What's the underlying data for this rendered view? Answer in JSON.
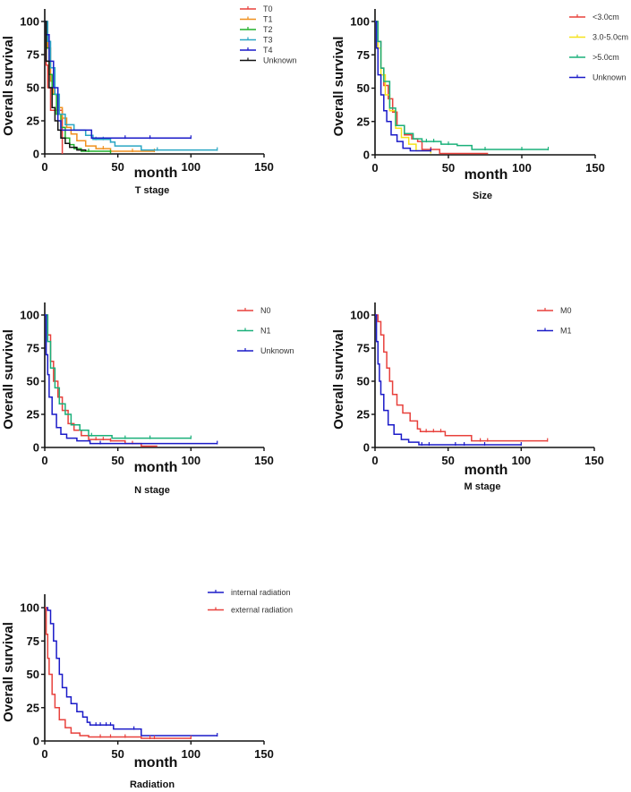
{
  "chart_data": [
    {
      "type": "line",
      "subtype": "kaplan-meier",
      "title": "T stage",
      "xlabel": "month",
      "ylabel": "Overall survival",
      "xlim": [
        0,
        150
      ],
      "ylim": [
        0,
        110
      ],
      "xticks": [
        0,
        50,
        100,
        150
      ],
      "yticks": [
        0,
        25,
        50,
        75,
        100
      ],
      "legend_position": "top-right",
      "series": [
        {
          "name": "T0",
          "color": "#e8413c",
          "points": [
            [
              0,
              100
            ],
            [
              1,
              67
            ],
            [
              2,
              50
            ],
            [
              4,
              33
            ],
            [
              12,
              33
            ],
            [
              12,
              0
            ]
          ],
          "censored": []
        },
        {
          "name": "T1",
          "color": "#f0901e",
          "points": [
            [
              0,
              100
            ],
            [
              2,
              80
            ],
            [
              4,
              55
            ],
            [
              6,
              45
            ],
            [
              9,
              35
            ],
            [
              12,
              27
            ],
            [
              15,
              20
            ],
            [
              18,
              15
            ],
            [
              22,
              10
            ],
            [
              28,
              6
            ],
            [
              35,
              4
            ],
            [
              45,
              2
            ],
            [
              75,
              2
            ]
          ],
          "censored": [
            40,
            60,
            75
          ]
        },
        {
          "name": "T2",
          "color": "#22b02c",
          "points": [
            [
              0,
              100
            ],
            [
              1,
              80
            ],
            [
              3,
              60
            ],
            [
              5,
              45
            ],
            [
              8,
              30
            ],
            [
              11,
              20
            ],
            [
              14,
              12
            ],
            [
              17,
              7
            ],
            [
              20,
              4
            ],
            [
              25,
              2
            ],
            [
              45,
              1
            ]
          ],
          "censored": [
            30,
            45
          ]
        },
        {
          "name": "T3",
          "color": "#2aa6c4",
          "points": [
            [
              0,
              100
            ],
            [
              2,
              85
            ],
            [
              4,
              65
            ],
            [
              7,
              45
            ],
            [
              10,
              30
            ],
            [
              14,
              22
            ],
            [
              20,
              18
            ],
            [
              28,
              14
            ],
            [
              33,
              11
            ],
            [
              45,
              9
            ],
            [
              48,
              6
            ],
            [
              66,
              6
            ],
            [
              66,
              3
            ],
            [
              118,
              3
            ]
          ],
          "censored": [
            35,
            40,
            45,
            77,
            118
          ]
        },
        {
          "name": "T4",
          "color": "#1a1ac8",
          "points": [
            [
              0,
              100
            ],
            [
              1,
              90
            ],
            [
              3,
              70
            ],
            [
              6,
              50
            ],
            [
              9,
              25
            ],
            [
              11,
              18
            ],
            [
              20,
              18
            ],
            [
              32,
              12
            ],
            [
              100,
              12
            ]
          ],
          "censored": [
            32,
            55,
            72,
            100
          ]
        },
        {
          "name": "Unknown",
          "color": "#111111",
          "points": [
            [
              0,
              100
            ],
            [
              1,
              70
            ],
            [
              3,
              50
            ],
            [
              5,
              35
            ],
            [
              7,
              25
            ],
            [
              9,
              18
            ],
            [
              11,
              12
            ],
            [
              14,
              8
            ],
            [
              17,
              5
            ],
            [
              22,
              3
            ],
            [
              28,
              2
            ]
          ],
          "censored": []
        }
      ]
    },
    {
      "type": "line",
      "subtype": "kaplan-meier",
      "title": "Size",
      "xlabel": "month",
      "ylabel": "Overall survival",
      "xlim": [
        0,
        150
      ],
      "ylim": [
        0,
        110
      ],
      "xticks": [
        0,
        50,
        100,
        150
      ],
      "yticks": [
        0,
        25,
        50,
        75,
        100
      ],
      "legend_position": "top-right",
      "series": [
        {
          "name": "<3.0cm",
          "color": "#e8413c",
          "points": [
            [
              0,
              100
            ],
            [
              2,
              85
            ],
            [
              4,
              65
            ],
            [
              6,
              52
            ],
            [
              9,
              42
            ],
            [
              12,
              32
            ],
            [
              15,
              22
            ],
            [
              20,
              15
            ],
            [
              25,
              12
            ],
            [
              29,
              10
            ],
            [
              32,
              4
            ],
            [
              44,
              4
            ],
            [
              44,
              1
            ],
            [
              77,
              1
            ]
          ],
          "censored": [
            38
          ]
        },
        {
          "name": "3.0-5.0cm",
          "color": "#f5e21a",
          "points": [
            [
              0,
              100
            ],
            [
              2,
              80
            ],
            [
              4,
              60
            ],
            [
              7,
              45
            ],
            [
              10,
              33
            ],
            [
              14,
              20
            ],
            [
              18,
              13
            ],
            [
              23,
              8
            ],
            [
              28,
              3
            ],
            [
              38,
              1
            ]
          ],
          "censored": []
        },
        {
          "name": ">5.0cm",
          "color": "#1ab07a",
          "points": [
            [
              0,
              100
            ],
            [
              2,
              85
            ],
            [
              4,
              65
            ],
            [
              6,
              55
            ],
            [
              10,
              35
            ],
            [
              14,
              22
            ],
            [
              20,
              16
            ],
            [
              26,
              12
            ],
            [
              32,
              10
            ],
            [
              45,
              8
            ],
            [
              56,
              7
            ],
            [
              66,
              4
            ],
            [
              118,
              4
            ]
          ],
          "censored": [
            35,
            40,
            50,
            75,
            100,
            118
          ]
        },
        {
          "name": "Unknown",
          "color": "#1a1ac8",
          "points": [
            [
              0,
              100
            ],
            [
              1,
              80
            ],
            [
              2,
              60
            ],
            [
              4,
              45
            ],
            [
              6,
              33
            ],
            [
              8,
              25
            ],
            [
              11,
              15
            ],
            [
              15,
              10
            ],
            [
              19,
              5
            ],
            [
              24,
              3
            ],
            [
              38,
              3
            ]
          ],
          "censored": [
            38
          ]
        }
      ]
    },
    {
      "type": "line",
      "subtype": "kaplan-meier",
      "title": "N stage",
      "xlabel": "month",
      "ylabel": "Overall survival",
      "xlim": [
        0,
        150
      ],
      "ylim": [
        0,
        110
      ],
      "xticks": [
        0,
        50,
        100,
        150
      ],
      "yticks": [
        0,
        25,
        50,
        75,
        100
      ],
      "legend_position": "top-right",
      "series": [
        {
          "name": "N0",
          "color": "#e8413c",
          "points": [
            [
              0,
              100
            ],
            [
              2,
              85
            ],
            [
              4,
              65
            ],
            [
              6,
              50
            ],
            [
              9,
              38
            ],
            [
              12,
              28
            ],
            [
              16,
              18
            ],
            [
              20,
              13
            ],
            [
              25,
              9
            ],
            [
              30,
              6
            ],
            [
              45,
              5
            ],
            [
              55,
              3
            ],
            [
              66,
              1
            ],
            [
              77,
              1
            ]
          ],
          "censored": [
            35,
            40,
            45,
            60
          ]
        },
        {
          "name": "N1",
          "color": "#1ab07a",
          "points": [
            [
              0,
              100
            ],
            [
              2,
              80
            ],
            [
              4,
              60
            ],
            [
              7,
              45
            ],
            [
              10,
              33
            ],
            [
              14,
              25
            ],
            [
              18,
              17
            ],
            [
              24,
              13
            ],
            [
              30,
              9
            ],
            [
              44,
              9
            ],
            [
              46,
              7
            ],
            [
              100,
              7
            ]
          ],
          "censored": [
            32,
            55,
            72,
            100
          ]
        },
        {
          "name": "Unknown",
          "color": "#1a1ac8",
          "points": [
            [
              0,
              100
            ],
            [
              1,
              70
            ],
            [
              2,
              55
            ],
            [
              3,
              38
            ],
            [
              5,
              25
            ],
            [
              8,
              15
            ],
            [
              11,
              10
            ],
            [
              15,
              7
            ],
            [
              22,
              5
            ],
            [
              31,
              3
            ],
            [
              118,
              3
            ]
          ],
          "censored": [
            38,
            118
          ]
        }
      ]
    },
    {
      "type": "line",
      "subtype": "kaplan-meier",
      "title": "M stage",
      "xlabel": "month",
      "ylabel": "Overall survival",
      "xlim": [
        0,
        150
      ],
      "ylim": [
        0,
        110
      ],
      "xticks": [
        0,
        50,
        100,
        150
      ],
      "yticks": [
        0,
        25,
        50,
        75,
        100
      ],
      "legend_position": "top-right",
      "series": [
        {
          "name": "M0",
          "color": "#e8413c",
          "points": [
            [
              0,
              100
            ],
            [
              2,
              95
            ],
            [
              4,
              85
            ],
            [
              6,
              72
            ],
            [
              8,
              60
            ],
            [
              10,
              50
            ],
            [
              12,
              40
            ],
            [
              15,
              32
            ],
            [
              19,
              26
            ],
            [
              24,
              20
            ],
            [
              29,
              14
            ],
            [
              31,
              12
            ],
            [
              46,
              12
            ],
            [
              48,
              9
            ],
            [
              56,
              9
            ],
            [
              66,
              5
            ],
            [
              118,
              5
            ]
          ],
          "censored": [
            35,
            40,
            45,
            72,
            77,
            118
          ]
        },
        {
          "name": "M1",
          "color": "#1a1ac8",
          "points": [
            [
              0,
              100
            ],
            [
              1,
              80
            ],
            [
              2,
              63
            ],
            [
              3,
              50
            ],
            [
              4,
              40
            ],
            [
              6,
              28
            ],
            [
              9,
              17
            ],
            [
              13,
              10
            ],
            [
              18,
              6
            ],
            [
              23,
              4
            ],
            [
              30,
              2
            ],
            [
              100,
              2
            ]
          ],
          "censored": [
            32,
            37,
            55,
            61,
            75,
            100
          ]
        }
      ]
    },
    {
      "type": "line",
      "subtype": "kaplan-meier",
      "title": "Radiation",
      "xlabel": "month",
      "ylabel": "Overall survival",
      "xlim": [
        0,
        150
      ],
      "ylim": [
        0,
        110
      ],
      "xticks": [
        0,
        50,
        100,
        150
      ],
      "yticks": [
        0,
        25,
        50,
        75,
        100
      ],
      "legend_position": "top-right",
      "series": [
        {
          "name": "internal radiation",
          "color": "#1a1ac8",
          "points": [
            [
              0,
              100
            ],
            [
              2,
              98
            ],
            [
              4,
              88
            ],
            [
              6,
              75
            ],
            [
              8,
              62
            ],
            [
              10,
              50
            ],
            [
              12,
              40
            ],
            [
              15,
              33
            ],
            [
              18,
              28
            ],
            [
              22,
              22
            ],
            [
              26,
              18
            ],
            [
              29,
              14
            ],
            [
              31,
              12
            ],
            [
              47,
              12
            ],
            [
              47,
              9
            ],
            [
              66,
              9
            ],
            [
              66,
              4
            ],
            [
              118,
              4
            ]
          ],
          "censored": [
            35,
            38,
            42,
            45,
            61,
            118
          ]
        },
        {
          "name": "external radiation",
          "color": "#e8413c",
          "points": [
            [
              0,
              100
            ],
            [
              1,
              80
            ],
            [
              2,
              62
            ],
            [
              3,
              50
            ],
            [
              5,
              35
            ],
            [
              7,
              25
            ],
            [
              10,
              16
            ],
            [
              14,
              10
            ],
            [
              18,
              6
            ],
            [
              24,
              4
            ],
            [
              30,
              3
            ],
            [
              66,
              2
            ],
            [
              100,
              2
            ]
          ],
          "censored": [
            38,
            45,
            55,
            72,
            75,
            100
          ]
        }
      ]
    }
  ]
}
